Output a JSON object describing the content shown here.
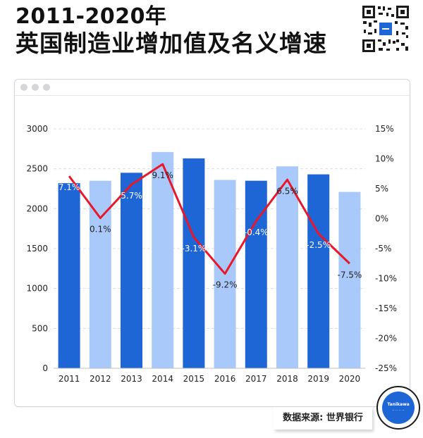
{
  "header": {
    "title_line1": "2011-2020年",
    "title_line2": "英国制造业增加值及名义增速"
  },
  "footer": {
    "source": "数据来源: 世界银行"
  },
  "badge": {
    "brand": "Tanikawa",
    "sub": "·· ·· ·· ··"
  },
  "colors": {
    "bar_dark": "#1e66d6",
    "bar_light": "#a9c9fb",
    "line": "#e8182a",
    "text": "#222222"
  },
  "chart_data": {
    "type": "bar",
    "categories": [
      "2011",
      "2012",
      "2013",
      "2014",
      "2015",
      "2016",
      "2017",
      "2018",
      "2019",
      "2020"
    ],
    "series": [
      {
        "name": "",
        "type": "bar",
        "values": [
          2320,
          2350,
          2450,
          2710,
          2630,
          2360,
          2350,
          2530,
          2430,
          2210
        ]
      },
      {
        "name": "",
        "type": "line",
        "axis": "right",
        "values": [
          7.1,
          0.1,
          5.7,
          9.1,
          -3.1,
          -9.2,
          -0.4,
          6.5,
          -2.5,
          -7.5
        ]
      }
    ],
    "data_labels": [
      "7.1%",
      "0.1%",
      "5.7%",
      "9.1%",
      "-3.1%",
      "-9.2%",
      "-0.4%",
      "6.5%",
      "-2.5%",
      "-7.5%"
    ],
    "ylim": [
      0,
      3000
    ],
    "y_ticks": [
      "0",
      "500",
      "1000",
      "1500",
      "2000",
      "2500",
      "3000"
    ],
    "y2lim": [
      -25,
      15
    ],
    "y2_ticks": [
      "-25%",
      "-20%",
      "-15%",
      "-10%",
      "-5%",
      "0%",
      "5%",
      "10%",
      "15%"
    ],
    "grid": true
  }
}
